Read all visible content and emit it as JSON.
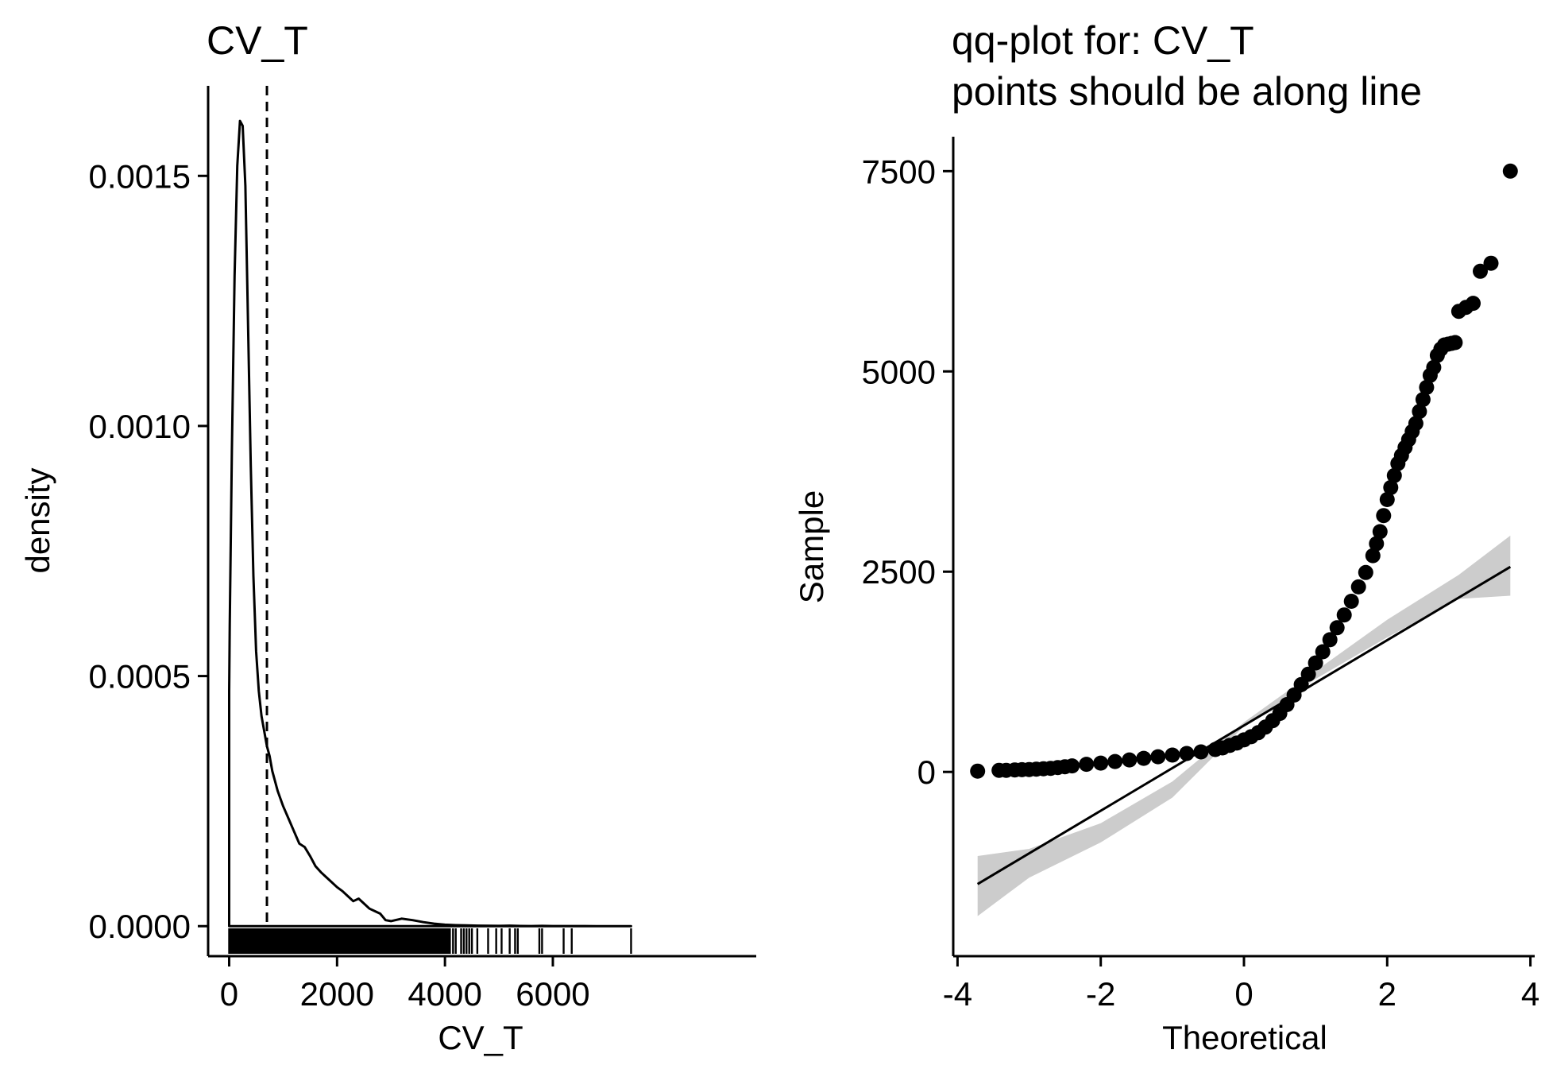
{
  "chart_data": [
    {
      "type": "area",
      "title": "CV_T",
      "xlabel": "CV_T",
      "ylabel": "density",
      "xlim": [
        -390,
        9770
      ],
      "ylim": [
        -6e-05,
        0.00168
      ],
      "xticks": [
        {
          "value": 0,
          "label": "0"
        },
        {
          "value": 2000,
          "label": "2000"
        },
        {
          "value": 4000,
          "label": "4000"
        },
        {
          "value": 6000,
          "label": "6000"
        }
      ],
      "yticks": [
        {
          "value": 0,
          "label": "0.0000"
        },
        {
          "value": 0.0005,
          "label": "0.0005"
        },
        {
          "value": 0.001,
          "label": "0.0010"
        },
        {
          "value": 0.0015,
          "label": "0.0015"
        }
      ],
      "density_curve": {
        "x": [
          0,
          10,
          50,
          100,
          150,
          200,
          250,
          300,
          350,
          400,
          450,
          500,
          550,
          600,
          650,
          700,
          750,
          800,
          850,
          900,
          1000,
          1100,
          1200,
          1300,
          1400,
          1500,
          1600,
          1700,
          1800,
          1900,
          2000,
          2100,
          2200,
          2300,
          2400,
          2500,
          2600,
          2700,
          2800,
          2900,
          3000,
          3200,
          3400,
          3600,
          3800,
          4000,
          4200,
          4400,
          4600,
          4800,
          5000,
          5200,
          5400,
          5600,
          5800,
          6000,
          6200,
          6400,
          6600,
          6800,
          7000,
          7200,
          7450
        ],
        "y": [
          0.00047,
          0.0006,
          0.00095,
          0.0013,
          0.00152,
          0.00161,
          0.0016,
          0.00148,
          0.0012,
          0.00092,
          0.0007,
          0.00055,
          0.00047,
          0.00042,
          0.00039,
          0.00036,
          0.00034,
          0.00031,
          0.00029,
          0.00027,
          0.00024,
          0.000215,
          0.00019,
          0.000165,
          0.000158,
          0.00014,
          0.00012,
          0.000108,
          9.8e-05,
          8.8e-05,
          7.8e-05,
          7e-05,
          6e-05,
          5e-05,
          5.5e-05,
          4.5e-05,
          3.5e-05,
          3e-05,
          2.5e-05,
          1.2e-05,
          1e-05,
          1.5e-05,
          1.2e-05,
          8e-06,
          5e-06,
          3e-06,
          2e-06,
          1.5e-06,
          1e-06,
          8e-07,
          5e-07,
          1e-06,
          4e-07,
          3e-07,
          6e-07,
          2e-07,
          3e-07,
          2e-07,
          2e-07,
          1e-07,
          1e-07,
          1e-07,
          1e-07
        ]
      },
      "mean_line": {
        "x": 700,
        "style": "dashed"
      },
      "rug": {
        "dense_range": [
          0,
          4100
        ],
        "sparse_values": [
          4150,
          4200,
          4300,
          4350,
          4400,
          4450,
          4500,
          4600,
          4800,
          4950,
          5050,
          5200,
          5300,
          5350,
          5750,
          5800,
          6200,
          6350,
          7450
        ]
      },
      "grid": false,
      "legend": "none"
    },
    {
      "type": "scatter",
      "title": "qq-plot for: CV_T\npoints should be along line",
      "title_lines": [
        "qq-plot for: CV_T",
        "points should be along line"
      ],
      "xlabel": "Theoretical",
      "ylabel": "Sample",
      "xlim": [
        -4.06,
        4.06
      ],
      "ylim": [
        -2300,
        7930
      ],
      "xticks": [
        {
          "value": -4,
          "label": "-4"
        },
        {
          "value": -2,
          "label": "-2"
        },
        {
          "value": 0,
          "label": "0"
        },
        {
          "value": 2,
          "label": "2"
        },
        {
          "value": 4,
          "label": "4"
        }
      ],
      "yticks": [
        {
          "value": 0,
          "label": "0"
        },
        {
          "value": 2500,
          "label": "2500"
        },
        {
          "value": 5000,
          "label": "5000"
        },
        {
          "value": 7500,
          "label": "7500"
        }
      ],
      "points": {
        "x": [
          -3.72,
          -3.42,
          -3.32,
          -3.2,
          -3.1,
          -3.0,
          -2.9,
          -2.8,
          -2.7,
          -2.6,
          -2.5,
          -2.4,
          -2.2,
          -2.0,
          -1.8,
          -1.6,
          -1.4,
          -1.2,
          -1.0,
          -0.8,
          -0.6,
          -0.4,
          -0.3,
          -0.2,
          -0.1,
          0.0,
          0.1,
          0.2,
          0.3,
          0.4,
          0.5,
          0.6,
          0.7,
          0.8,
          0.9,
          1.0,
          1.1,
          1.2,
          1.3,
          1.4,
          1.5,
          1.6,
          1.7,
          1.8,
          1.85,
          1.9,
          1.95,
          2.0,
          2.05,
          2.1,
          2.15,
          2.2,
          2.25,
          2.3,
          2.35,
          2.4,
          2.45,
          2.5,
          2.55,
          2.6,
          2.65,
          2.7,
          2.75,
          2.8,
          2.85,
          2.9,
          2.95,
          3.0,
          3.1,
          3.2,
          3.3,
          3.45,
          3.72
        ],
        "y": [
          10,
          20,
          20,
          25,
          28,
          30,
          35,
          40,
          45,
          55,
          65,
          75,
          95,
          110,
          130,
          150,
          170,
          190,
          210,
          230,
          250,
          280,
          300,
          330,
          360,
          400,
          440,
          490,
          560,
          640,
          730,
          840,
          960,
          1090,
          1220,
          1360,
          1500,
          1650,
          1800,
          1960,
          2130,
          2310,
          2490,
          2700,
          2850,
          3000,
          3200,
          3400,
          3550,
          3700,
          3850,
          3950,
          4050,
          4150,
          4250,
          4350,
          4500,
          4650,
          4800,
          4950,
          5050,
          5200,
          5280,
          5330,
          5340,
          5350,
          5360,
          5750,
          5800,
          5850,
          6250,
          6350,
          7500
        ]
      },
      "reference_line": {
        "x": [
          -3.72,
          3.72
        ],
        "y": [
          -1400,
          2560
        ]
      },
      "confidence_band": {
        "x": [
          -3.72,
          -3.0,
          -2.0,
          -1.0,
          0.0,
          1.0,
          2.0,
          3.0,
          3.72
        ],
        "lower": [
          -1800,
          -1320,
          -880,
          -320,
          570,
          1160,
          1680,
          2160,
          2200
        ],
        "upper": [
          -1050,
          -960,
          -640,
          -120,
          620,
          1260,
          1900,
          2460,
          2950
        ]
      },
      "grid": false,
      "legend": "none"
    }
  ]
}
